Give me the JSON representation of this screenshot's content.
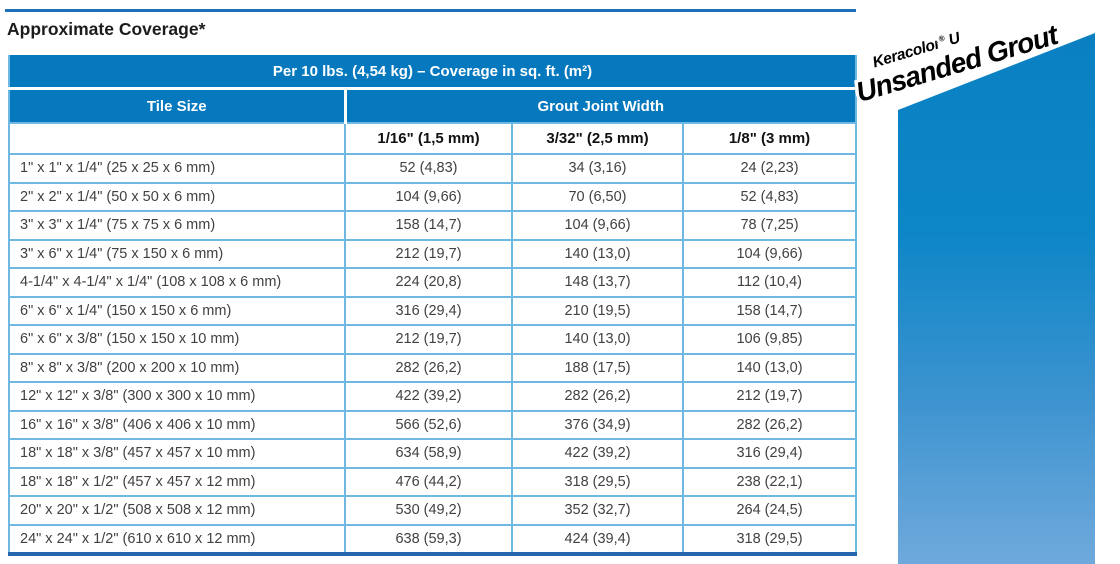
{
  "page": {
    "title": "Approximate Coverage*"
  },
  "table": {
    "span_header": "Per 10 lbs. (4,54 kg) – Coverage in sq. ft. (m²)",
    "group_headers": {
      "tile_size": "Tile Size",
      "grout_joint_width": "Grout Joint Width"
    },
    "sub_headers": [
      "1/16\" (1,5 mm)",
      "3/32\" (2,5 mm)",
      "1/8\" (3 mm)"
    ],
    "rows": [
      {
        "tile": "1\" x 1\" x 1/4\" (25 x 25 x 6 mm)",
        "values": [
          "52 (4,83)",
          "34 (3,16)",
          "24 (2,23)"
        ]
      },
      {
        "tile": "2\" x 2\" x 1/4\" (50 x 50 x 6 mm)",
        "values": [
          "104 (9,66)",
          "70 (6,50)",
          "52 (4,83)"
        ]
      },
      {
        "tile": "3\" x 3\" x 1/4\" (75 x 75 x 6 mm)",
        "values": [
          "158 (14,7)",
          "104 (9,66)",
          "78 (7,25)"
        ]
      },
      {
        "tile": "3\" x 6\" x 1/4\" (75 x 150 x 6 mm)",
        "values": [
          "212 (19,7)",
          "140 (13,0)",
          "104 (9,66)"
        ]
      },
      {
        "tile": "4-1/4\" x 4-1/4\" x 1/4\" (108 x 108 x 6 mm)",
        "values": [
          "224 (20,8)",
          "148 (13,7)",
          "112 (10,4)"
        ]
      },
      {
        "tile": "6\" x 6\" x 1/4\" (150 x 150 x 6 mm)",
        "values": [
          "316 (29,4)",
          "210 (19,5)",
          "158 (14,7)"
        ]
      },
      {
        "tile": "6\" x 6\" x 3/8\" (150 x 150 x 10 mm)",
        "values": [
          "212 (19,7)",
          "140 (13,0)",
          "106 (9,85)"
        ]
      },
      {
        "tile": "8\" x 8\" x 3/8\" (200 x 200 x 10 mm)",
        "values": [
          "282 (26,2)",
          "188 (17,5)",
          "140 (13,0)"
        ]
      },
      {
        "tile": "12\" x 12\" x 3/8\" (300 x 300 x 10 mm)",
        "values": [
          "422 (39,2)",
          "282 (26,2)",
          "212 (19,7)"
        ]
      },
      {
        "tile": "16\" x 16\" x 3/8\" (406 x 406 x 10 mm)",
        "values": [
          "566 (52,6)",
          "376 (34,9)",
          "282 (26,2)"
        ]
      },
      {
        "tile": "18\" x 18\" x 3/8\" (457 x 457 x 10 mm)",
        "values": [
          "634 (58,9)",
          "422 (39,2)",
          "316 (29,4)"
        ]
      },
      {
        "tile": "18\" x 18\" x 1/2\" (457 x 457 x 12 mm)",
        "values": [
          "476 (44,2)",
          "318 (29,5)",
          "238 (22,1)"
        ]
      },
      {
        "tile": "20\" x 20\" x 1/2\" (508 x 508 x 12 mm)",
        "values": [
          "530 (49,2)",
          "352 (32,7)",
          "264 (24,5)"
        ]
      },
      {
        "tile": "24\" x 24\" x 1/2\" (610 x 610 x 12 mm)",
        "values": [
          "638 (59,3)",
          "424 (39,4)",
          "318 (29,5)"
        ]
      }
    ]
  },
  "side_banner": {
    "brand": "Keracolor",
    "reg_mark": "®",
    "brand_suffix": " U",
    "product": "Unsanded Grout"
  },
  "colors": {
    "header_blue": "#0679be",
    "border_light": "#70b8e4",
    "border_dark": "#2564ae",
    "top_rule": "#1c70b8",
    "banner_top": "#0a80c1",
    "banner_bottom": "#6fa9dc"
  }
}
